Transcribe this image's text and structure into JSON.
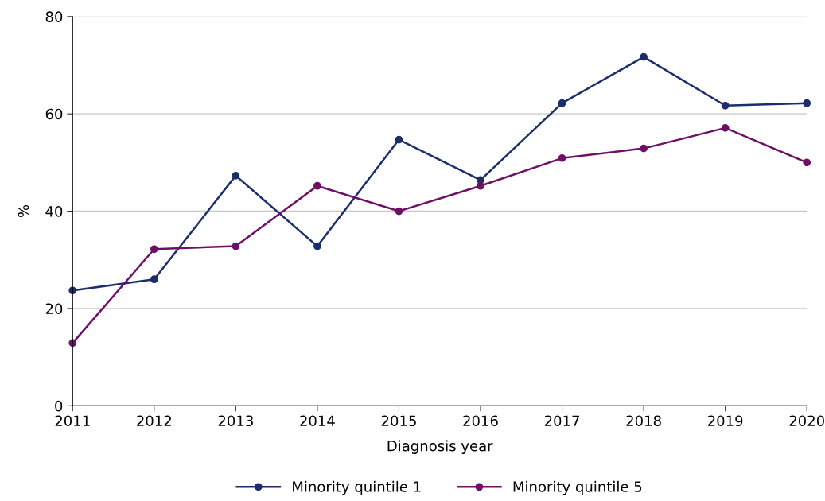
{
  "chart_data": {
    "type": "line",
    "xlabel": "Diagnosis year",
    "ylabel": "%",
    "x": [
      2011,
      2012,
      2013,
      2014,
      2015,
      2016,
      2017,
      2018,
      2019,
      2020
    ],
    "series": [
      {
        "name": "Minority quintile 1",
        "color": "#1b2d6b",
        "values": [
          23.7,
          26.0,
          47.3,
          32.8,
          54.7,
          46.4,
          62.2,
          71.7,
          61.7,
          62.2
        ]
      },
      {
        "name": "Minority quintile 5",
        "color": "#6e1066",
        "values": [
          12.9,
          32.2,
          32.8,
          45.2,
          40.0,
          45.2,
          50.9,
          52.9,
          57.1,
          50.0
        ]
      }
    ],
    "xlim": [
      2011,
      2020
    ],
    "xticks": [
      2011,
      2012,
      2013,
      2014,
      2015,
      2016,
      2017,
      2018,
      2019,
      2020
    ],
    "ylim": [
      0,
      80
    ],
    "yticks": [
      0,
      20,
      40,
      60,
      80
    ],
    "grid": "y",
    "legend": "bottom",
    "marker": "circle",
    "line_style": "solid"
  }
}
